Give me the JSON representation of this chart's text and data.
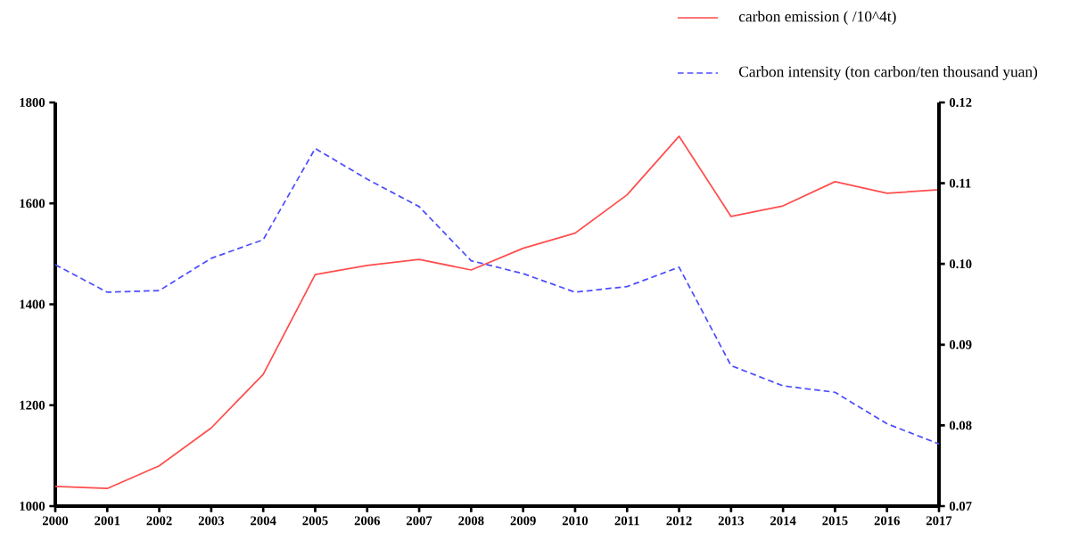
{
  "chart_data": {
    "type": "line",
    "x": [
      2000,
      2001,
      2002,
      2003,
      2004,
      2005,
      2006,
      2007,
      2008,
      2009,
      2010,
      2011,
      2012,
      2013,
      2014,
      2015,
      2016,
      2017
    ],
    "series": [
      {
        "name": "carbon emission ( /10^4t)",
        "color": "#ff4d4d",
        "line_style": "solid",
        "values": [
          1039,
          1035,
          1080,
          1155,
          1261,
          1459,
          1477,
          1489,
          1468,
          1511,
          1541,
          1617,
          1733,
          1574,
          1595,
          1643,
          1620,
          1627
        ]
      },
      {
        "name": "Carbon intensity (ton carbon/ten thousand yuan)",
        "color": "#4d4dff",
        "line_style": "dashed",
        "axis": "y2",
        "values": [
          0.0999,
          0.0965,
          0.0967,
          0.1007,
          0.103,
          0.1143,
          0.1105,
          0.1071,
          0.1004,
          0.0988,
          0.0965,
          0.0972,
          0.0996,
          0.0874,
          0.0849,
          0.0841,
          0.0802,
          0.0777
        ]
      }
    ],
    "xlim": [
      2000,
      2017
    ],
    "xticks": [
      2000,
      2001,
      2002,
      2003,
      2004,
      2005,
      2006,
      2007,
      2008,
      2009,
      2010,
      2011,
      2012,
      2013,
      2014,
      2015,
      2016,
      2017
    ],
    "ylim": [
      1000,
      1800
    ],
    "yticks": [
      1000,
      1200,
      1400,
      1600,
      1800
    ],
    "y2lim": [
      0.07,
      0.12
    ],
    "y2ticks": [
      {
        "value": 0.07,
        "label": "0.07"
      },
      {
        "value": 0.08,
        "label": "0.08"
      },
      {
        "value": 0.09,
        "label": "0.09"
      },
      {
        "value": 0.1,
        "label": "0.10"
      },
      {
        "value": 0.11,
        "label": "0.11"
      },
      {
        "value": 0.12,
        "label": "0.12"
      }
    ],
    "legend": "top right",
    "grid": false,
    "marker": "none"
  }
}
